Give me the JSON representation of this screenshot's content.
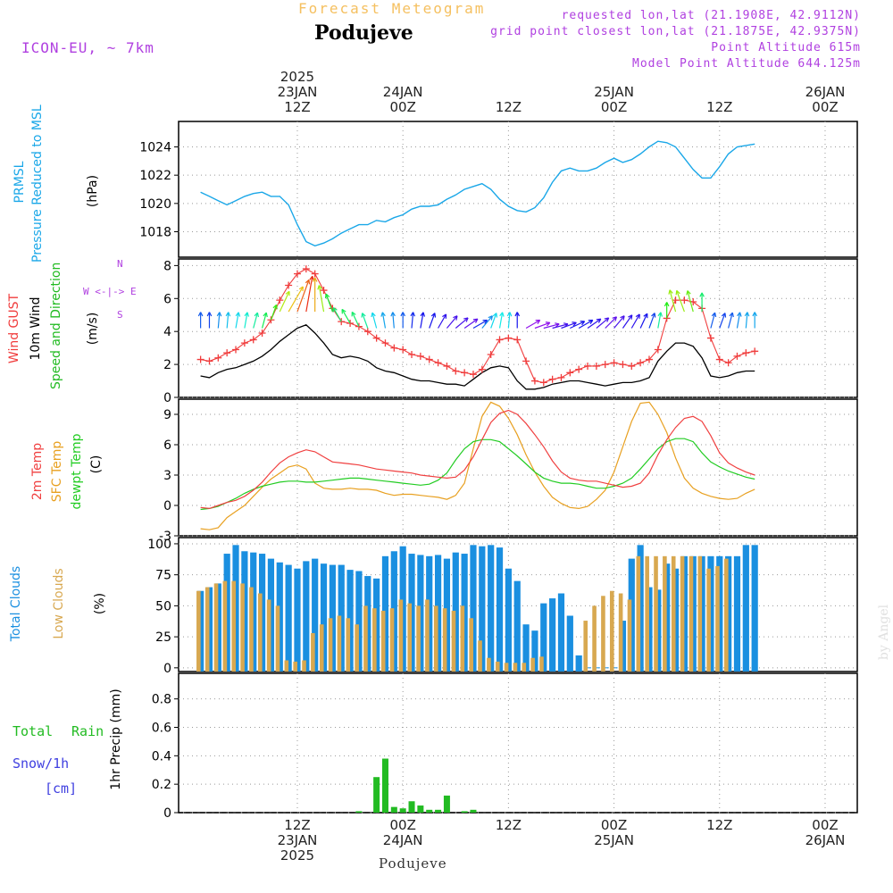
{
  "header": {
    "chart_title": "Forecast Meteogram",
    "station": "Podujeve",
    "model": "ICON-EU, ~ 7km",
    "requested": "requested lon,lat (21.1908E, 42.9112N)",
    "grid_point": "grid point closest lon,lat (21.1875E, 42.9375N)",
    "point_alt": "Point Altitude 615m",
    "model_alt": "Model Point Altitude 644.125m",
    "credit": "by Angel",
    "footer": "Podujeve"
  },
  "time_axis": {
    "top_labels": [
      {
        "year": "2025",
        "date": "23JAN",
        "hour": "12Z"
      },
      {
        "year": "",
        "date": "24JAN",
        "hour": "00Z"
      },
      {
        "year": "",
        "date": "",
        "hour": "12Z"
      },
      {
        "year": "",
        "date": "25JAN",
        "hour": "00Z"
      },
      {
        "year": "",
        "date": "",
        "hour": "12Z"
      },
      {
        "year": "",
        "date": "26JAN",
        "hour": "00Z"
      }
    ],
    "bottom_labels": [
      {
        "hour": "12Z",
        "date": "23JAN",
        "year": "2025"
      },
      {
        "hour": "00Z",
        "date": "24JAN",
        "year": ""
      },
      {
        "hour": "12Z",
        "date": "",
        "year": ""
      },
      {
        "hour": "00Z",
        "date": "25JAN",
        "year": ""
      },
      {
        "hour": "12Z",
        "date": "",
        "year": ""
      },
      {
        "hour": "00Z",
        "date": "26JAN",
        "year": ""
      }
    ]
  },
  "labels": {
    "pressure": [
      "PRMSL",
      "Pressure Reduced to MSL",
      "(hPa)"
    ],
    "wind": [
      "Wind GUST",
      "10m Wind",
      "Speed and Direction",
      "(m/s)"
    ],
    "temp": [
      "2m Temp",
      "SFC Temp",
      "dewpt Temp",
      "(C)"
    ],
    "clouds": [
      "Total Clouds",
      "Low Clouds",
      "(%)"
    ],
    "precip": [
      "Total",
      "Rain",
      "Snow/1h",
      "[cm]",
      "1hr Precip (mm)"
    ],
    "compass": [
      "N",
      "W <-|-> E",
      "S"
    ]
  },
  "colors": {
    "pressure": "#1aa7e8",
    "gust": "#f03c3c",
    "wind": "#000000",
    "temp2m": "#f04040",
    "sfc": "#e8a020",
    "dew": "#22cc22",
    "total_cloud": "#1a8fe0",
    "low_cloud": "#d8a850",
    "rain": "#22bb22",
    "snow": "#4040e0",
    "header_orange": "#f5c060",
    "purple": "#b040e0"
  },
  "chart_data": [
    {
      "type": "line",
      "title": "PRMSL Pressure Reduced to MSL",
      "ylabel": "hPa",
      "ylim": [
        1016.2,
        1025.8
      ],
      "yticks": [
        1018,
        1020,
        1022,
        1024
      ],
      "x_hours": [
        0,
        1,
        2,
        3,
        4,
        5,
        6,
        7,
        8,
        9,
        10,
        11,
        12,
        13,
        14,
        15,
        16,
        17,
        18,
        19,
        20,
        21,
        22,
        23,
        24,
        25,
        26,
        27,
        28,
        29,
        30,
        31,
        32,
        33,
        34,
        35,
        36,
        37,
        38,
        39,
        40,
        41,
        42,
        43,
        44,
        45,
        46,
        47,
        48,
        49,
        50,
        51,
        52,
        53,
        54,
        55,
        56,
        57,
        58,
        59,
        60,
        61,
        62,
        63
      ],
      "series": [
        {
          "name": "PRMSL",
          "values": [
            1020.8,
            1020.5,
            1020.2,
            1019.9,
            1020.2,
            1020.5,
            1020.7,
            1020.8,
            1020.5,
            1020.5,
            1019.9,
            1018.5,
            1017.3,
            1017.0,
            1017.2,
            1017.5,
            1017.9,
            1018.2,
            1018.5,
            1018.5,
            1018.8,
            1018.7,
            1019.0,
            1019.2,
            1019.6,
            1019.8,
            1019.8,
            1019.9,
            1020.3,
            1020.6,
            1021.0,
            1021.2,
            1021.4,
            1021.0,
            1020.3,
            1019.8,
            1019.5,
            1019.4,
            1019.7,
            1020.4,
            1021.5,
            1022.3,
            1022.5,
            1022.3,
            1022.3,
            1022.5,
            1022.9,
            1023.2,
            1022.9,
            1023.1,
            1023.5,
            1024.0,
            1024.4,
            1024.3,
            1024.0,
            1023.2,
            1022.4,
            1021.8,
            1021.8,
            1022.6,
            1023.5,
            1024.0,
            1024.1,
            1024.2
          ]
        }
      ]
    },
    {
      "type": "line",
      "title": "Wind GUST / 10m Wind Speed and Direction",
      "ylabel": "m/s",
      "ylim": [
        0,
        8.4
      ],
      "yticks": [
        0,
        2,
        4,
        6,
        8
      ],
      "x_hours": [
        0,
        1,
        2,
        3,
        4,
        5,
        6,
        7,
        8,
        9,
        10,
        11,
        12,
        13,
        14,
        15,
        16,
        17,
        18,
        19,
        20,
        21,
        22,
        23,
        24,
        25,
        26,
        27,
        28,
        29,
        30,
        31,
        32,
        33,
        34,
        35,
        36,
        37,
        38,
        39,
        40,
        41,
        42,
        43,
        44,
        45,
        46,
        47,
        48,
        49,
        50,
        51,
        52,
        53,
        54,
        55,
        56,
        57,
        58,
        59,
        60,
        61,
        62,
        63
      ],
      "series": [
        {
          "name": "Wind GUST",
          "values": [
            2.3,
            2.2,
            2.4,
            2.7,
            2.9,
            3.3,
            3.5,
            3.9,
            4.7,
            5.9,
            6.8,
            7.5,
            7.8,
            7.5,
            6.5,
            5.4,
            4.6,
            4.5,
            4.3,
            4.0,
            3.6,
            3.3,
            3.0,
            2.9,
            2.6,
            2.5,
            2.3,
            2.1,
            1.9,
            1.6,
            1.5,
            1.4,
            1.7,
            2.6,
            3.5,
            3.6,
            3.5,
            2.2,
            1.0,
            0.9,
            1.1,
            1.2,
            1.5,
            1.7,
            1.9,
            1.9,
            2.0,
            2.1,
            2.0,
            1.9,
            2.1,
            2.3,
            2.9,
            4.8,
            5.9,
            5.9,
            5.8,
            5.4,
            3.6,
            2.3,
            2.1,
            2.5,
            2.7,
            2.8
          ]
        },
        {
          "name": "10m Wind",
          "values": [
            1.3,
            1.2,
            1.5,
            1.7,
            1.8,
            2.0,
            2.2,
            2.5,
            2.9,
            3.4,
            3.8,
            4.2,
            4.4,
            3.9,
            3.3,
            2.6,
            2.4,
            2.5,
            2.4,
            2.2,
            1.8,
            1.6,
            1.5,
            1.3,
            1.1,
            1.0,
            1.0,
            0.9,
            0.8,
            0.8,
            0.7,
            1.1,
            1.5,
            1.8,
            1.9,
            1.8,
            1.0,
            0.5,
            0.5,
            0.6,
            0.8,
            0.9,
            1.0,
            1.0,
            0.9,
            0.8,
            0.7,
            0.8,
            0.9,
            0.9,
            1.0,
            1.2,
            2.2,
            2.8,
            3.3,
            3.3,
            3.1,
            2.4,
            1.3,
            1.2,
            1.3,
            1.5,
            1.6,
            1.6
          ]
        }
      ],
      "wind_dir_deg": [
        0,
        0,
        5,
        5,
        10,
        10,
        15,
        15,
        20,
        25,
        30,
        20,
        10,
        0,
        350,
        340,
        330,
        330,
        335,
        340,
        345,
        350,
        355,
        0,
        5,
        10,
        20,
        30,
        40,
        50,
        55,
        60,
        40,
        20,
        10,
        5,
        0,
        60,
        70,
        75,
        75,
        70,
        65,
        60,
        55,
        50,
        45,
        40,
        35,
        30,
        25,
        20,
        10,
        0,
        345,
        340,
        345,
        0,
        15,
        20,
        15,
        10,
        5,
        0
      ]
    },
    {
      "type": "line",
      "title": "2m Temp / SFC Temp / dewpt Temp",
      "ylabel": "C",
      "ylim": [
        -3,
        10.5
      ],
      "yticks": [
        -3,
        0,
        3,
        6,
        9
      ],
      "x_hours": [
        0,
        1,
        2,
        3,
        4,
        5,
        6,
        7,
        8,
        9,
        10,
        11,
        12,
        13,
        14,
        15,
        16,
        17,
        18,
        19,
        20,
        21,
        22,
        23,
        24,
        25,
        26,
        27,
        28,
        29,
        30,
        31,
        32,
        33,
        34,
        35,
        36,
        37,
        38,
        39,
        40,
        41,
        42,
        43,
        44,
        45,
        46,
        47,
        48,
        49,
        50,
        51,
        52,
        53,
        54,
        55,
        56,
        57,
        58,
        59,
        60,
        61,
        62,
        63
      ],
      "series": [
        {
          "name": "2m Temp",
          "values": [
            -0.2,
            -0.3,
            0.0,
            0.3,
            0.5,
            0.9,
            1.5,
            2.3,
            3.3,
            4.2,
            4.8,
            5.2,
            5.5,
            5.3,
            4.8,
            4.3,
            4.2,
            4.1,
            4.0,
            3.8,
            3.6,
            3.5,
            3.4,
            3.3,
            3.2,
            3.0,
            2.9,
            2.8,
            2.7,
            2.8,
            3.5,
            4.8,
            6.5,
            8.2,
            9.1,
            9.4,
            9.0,
            8.1,
            7.0,
            5.8,
            4.4,
            3.3,
            2.7,
            2.5,
            2.4,
            2.4,
            2.2,
            2.0,
            1.8,
            1.9,
            2.2,
            3.2,
            5.0,
            6.5,
            7.7,
            8.6,
            8.8,
            8.3,
            6.9,
            5.2,
            4.2,
            3.7,
            3.3,
            3.0
          ]
        },
        {
          "name": "SFC Temp",
          "values": [
            -2.3,
            -2.4,
            -2.2,
            -1.2,
            -0.6,
            0.0,
            0.9,
            1.8,
            2.6,
            3.2,
            3.8,
            4.0,
            3.6,
            2.2,
            1.7,
            1.6,
            1.6,
            1.7,
            1.6,
            1.6,
            1.5,
            1.2,
            1.0,
            1.1,
            1.1,
            1.0,
            0.9,
            0.8,
            0.6,
            1.0,
            2.2,
            5.6,
            8.8,
            10.2,
            9.8,
            8.6,
            7.0,
            5.0,
            3.3,
            1.9,
            0.8,
            0.2,
            -0.2,
            -0.3,
            -0.1,
            0.6,
            1.5,
            3.3,
            5.8,
            8.3,
            10.1,
            10.2,
            9.0,
            7.2,
            4.7,
            2.7,
            1.7,
            1.2,
            0.9,
            0.7,
            0.6,
            0.7,
            1.2,
            1.6
          ]
        },
        {
          "name": "dewpt Temp",
          "values": [
            -0.4,
            -0.3,
            -0.1,
            0.3,
            0.7,
            1.2,
            1.6,
            1.9,
            2.1,
            2.3,
            2.4,
            2.4,
            2.3,
            2.3,
            2.4,
            2.5,
            2.6,
            2.7,
            2.7,
            2.6,
            2.5,
            2.4,
            2.3,
            2.2,
            2.1,
            2.0,
            2.1,
            2.5,
            3.2,
            4.5,
            5.6,
            6.3,
            6.5,
            6.5,
            6.3,
            5.6,
            4.9,
            4.1,
            3.3,
            2.7,
            2.4,
            2.2,
            2.2,
            2.1,
            1.9,
            1.7,
            1.7,
            1.9,
            2.2,
            2.7,
            3.6,
            4.6,
            5.6,
            6.3,
            6.6,
            6.6,
            6.3,
            5.2,
            4.3,
            3.8,
            3.4,
            3.1,
            2.8,
            2.6
          ]
        }
      ]
    },
    {
      "type": "bar",
      "title": "Total Clouds / Low Clouds",
      "ylabel": "%",
      "ylim": [
        -3,
        105
      ],
      "yticks": [
        0,
        25,
        50,
        75,
        100
      ],
      "x_hours": [
        0,
        1,
        2,
        3,
        4,
        5,
        6,
        7,
        8,
        9,
        10,
        11,
        12,
        13,
        14,
        15,
        16,
        17,
        18,
        19,
        20,
        21,
        22,
        23,
        24,
        25,
        26,
        27,
        28,
        29,
        30,
        31,
        32,
        33,
        34,
        35,
        36,
        37,
        38,
        39,
        40,
        41,
        42,
        43,
        44,
        45,
        46,
        47,
        48,
        49,
        50,
        51,
        52,
        53,
        54,
        55,
        56,
        57,
        58,
        59,
        60,
        61,
        62,
        63
      ],
      "series": [
        {
          "name": "Total Clouds",
          "values": [
            62,
            65,
            68,
            92,
            99,
            94,
            93,
            92,
            88,
            85,
            83,
            80,
            86,
            88,
            84,
            83,
            83,
            79,
            78,
            74,
            72,
            90,
            94,
            98,
            92,
            91,
            90,
            91,
            88,
            93,
            92,
            99,
            98,
            99,
            97,
            80,
            70,
            35,
            30,
            52,
            56,
            60,
            42,
            10,
            0,
            0,
            0,
            0,
            38,
            88,
            99,
            65,
            63,
            84,
            80,
            90,
            90,
            90,
            90,
            90,
            90,
            90,
            99,
            99
          ]
        },
        {
          "name": "Low Clouds",
          "values": [
            62,
            65,
            68,
            70,
            70,
            68,
            65,
            60,
            55,
            50,
            6,
            5,
            6,
            28,
            35,
            40,
            42,
            40,
            35,
            50,
            48,
            46,
            48,
            55,
            52,
            50,
            55,
            50,
            48,
            46,
            50,
            40,
            22,
            8,
            5,
            4,
            4,
            4,
            8,
            9,
            0,
            0,
            0,
            0,
            38,
            50,
            58,
            62,
            60,
            55,
            90,
            90,
            90,
            90,
            90,
            90,
            90,
            90,
            80,
            82,
            88,
            0,
            0,
            0
          ]
        }
      ]
    },
    {
      "type": "bar",
      "title": "1hr Precip",
      "ylabel": "1hr Precip (mm)",
      "ylim": [
        0,
        0.98
      ],
      "yticks": [
        0,
        0.2,
        0.4,
        0.6,
        0.8
      ],
      "x_hours": [
        0,
        1,
        2,
        3,
        4,
        5,
        6,
        7,
        8,
        9,
        10,
        11,
        12,
        13,
        14,
        15,
        16,
        17,
        18,
        19,
        20,
        21,
        22,
        23,
        24,
        25,
        26,
        27,
        28,
        29,
        30,
        31,
        32,
        33,
        34,
        35,
        36,
        37,
        38,
        39,
        40,
        41,
        42,
        43,
        44,
        45,
        46,
        47,
        48,
        49,
        50,
        51,
        52,
        53,
        54,
        55,
        56,
        57,
        58,
        59,
        60,
        61,
        62,
        63
      ],
      "series": [
        {
          "name": "Total Rain",
          "values": [
            0,
            0,
            0,
            0,
            0,
            0,
            0,
            0,
            0,
            0,
            0,
            0,
            0,
            0,
            0,
            0,
            0,
            0,
            0.01,
            0,
            0.25,
            0.38,
            0.04,
            0.03,
            0.08,
            0.05,
            0.02,
            0.02,
            0.12,
            0,
            0.01,
            0.02,
            0,
            0,
            0,
            0,
            0,
            0,
            0,
            0,
            0,
            0,
            0,
            0,
            0,
            0,
            0,
            0,
            0,
            0,
            0,
            0,
            0,
            0,
            0,
            0,
            0,
            0,
            0,
            0,
            0,
            0,
            0,
            0
          ]
        }
      ]
    }
  ]
}
